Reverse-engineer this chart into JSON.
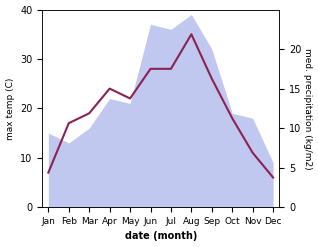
{
  "months": [
    "Jan",
    "Feb",
    "Mar",
    "Apr",
    "May",
    "Jun",
    "Jul",
    "Aug",
    "Sep",
    "Oct",
    "Nov",
    "Dec"
  ],
  "temp": [
    7,
    17,
    19,
    24,
    22,
    28,
    28,
    35,
    26,
    18,
    11,
    6
  ],
  "precip": [
    15,
    13,
    16,
    22,
    21,
    37,
    36,
    39,
    32,
    19,
    18,
    9
  ],
  "temp_color": "#8B2252",
  "precip_fill_color": "#c0c8f0",
  "ylabel_left": "max temp (C)",
  "ylabel_right": "med. precipitation (kg/m2)",
  "xlabel": "date (month)",
  "ylim_left": [
    0,
    40
  ],
  "ylim_right": [
    0,
    25
  ],
  "bg_color": "#ffffff",
  "line_width": 1.5,
  "left_yticks": [
    0,
    10,
    20,
    30,
    40
  ],
  "right_yticks": [
    0,
    5,
    10,
    15,
    20
  ]
}
